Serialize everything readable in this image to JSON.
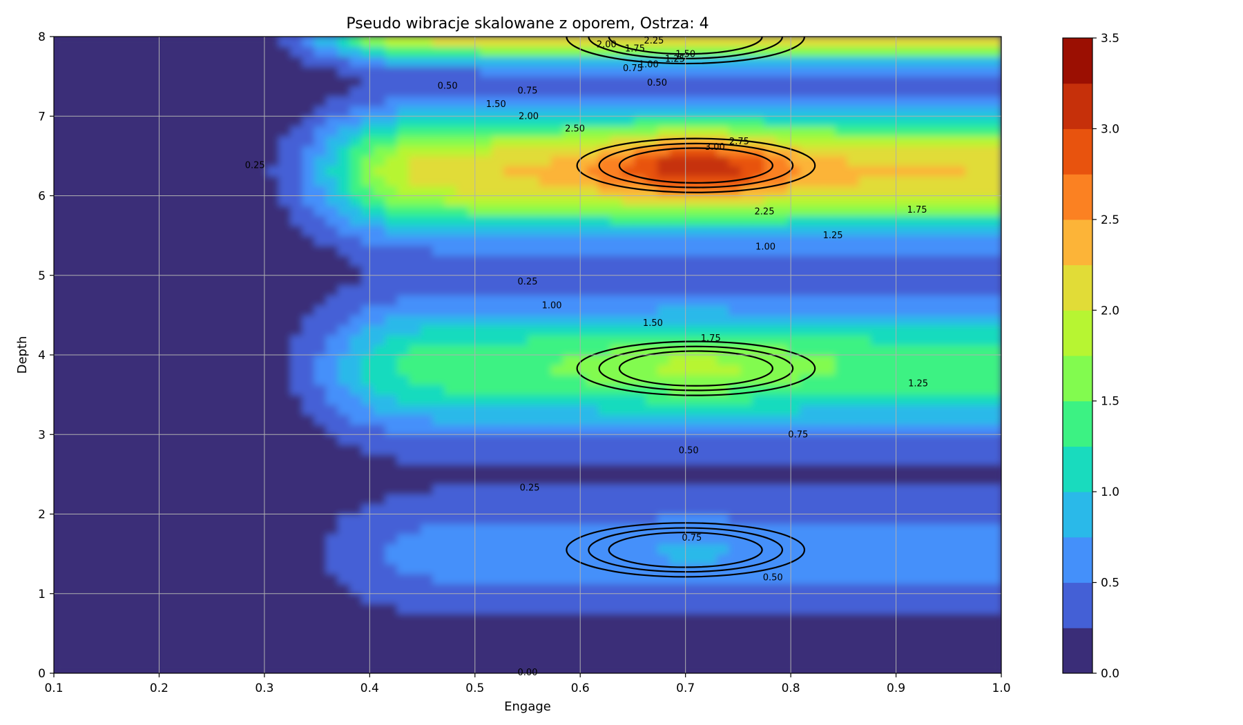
{
  "chart_data": {
    "type": "contourf",
    "title": "Pseudo wibracje skalowane z oporem, Ostrza: 4",
    "xlabel": "Engage",
    "ylabel": "Depth",
    "xlim": [
      0.1,
      1.0
    ],
    "ylim": [
      0,
      8
    ],
    "x_ticks": [
      "0.1",
      "0.2",
      "0.3",
      "0.4",
      "0.5",
      "0.6",
      "0.7",
      "0.8",
      "0.9",
      "1.0"
    ],
    "y_ticks": [
      "0",
      "1",
      "2",
      "3",
      "4",
      "5",
      "6",
      "7",
      "8"
    ],
    "grid": true,
    "colorbar": {
      "ticks": [
        "0.0",
        "0.5",
        "1.0",
        "1.5",
        "2.0",
        "2.5",
        "3.0",
        "3.5"
      ],
      "range": [
        0,
        3.5
      ],
      "level_step": 0.25,
      "colors": [
        "#3a2d78",
        "#4460d6",
        "#4490fa",
        "#2ab9e9",
        "#19dbbe",
        "#3cf283",
        "#82fb4f",
        "#b7f532",
        "#e1dc37",
        "#fcb438",
        "#fb8122",
        "#e8530e",
        "#c6300a",
        "#9b0f02"
      ]
    },
    "peaks": [
      {
        "x": 0.71,
        "y": 6.38,
        "value": 3.02
      },
      {
        "x": 0.71,
        "y": 3.83,
        "value": 1.77
      },
      {
        "x": 0.7,
        "y": 1.55,
        "value": 0.78
      },
      {
        "x": 0.7,
        "y": 8.0,
        "value": 2.3
      }
    ],
    "contour_labels": [
      {
        "text": "2.00",
        "x": 0.625,
        "y": 7.9
      },
      {
        "text": "2.25",
        "x": 0.67,
        "y": 7.95
      },
      {
        "text": "1.75",
        "x": 0.652,
        "y": 7.85
      },
      {
        "text": "1.50",
        "x": 0.7,
        "y": 7.78
      },
      {
        "text": "1.25",
        "x": 0.69,
        "y": 7.72
      },
      {
        "text": "1.00",
        "x": 0.665,
        "y": 7.65
      },
      {
        "text": "0.75",
        "x": 0.65,
        "y": 7.6
      },
      {
        "text": "0.50",
        "x": 0.673,
        "y": 7.42
      },
      {
        "text": "0.50",
        "x": 0.474,
        "y": 7.38
      },
      {
        "text": "0.75",
        "x": 0.55,
        "y": 7.32
      },
      {
        "text": "1.50",
        "x": 0.52,
        "y": 7.15
      },
      {
        "text": "2.00",
        "x": 0.551,
        "y": 7.0
      },
      {
        "text": "2.50",
        "x": 0.595,
        "y": 6.84
      },
      {
        "text": "2.75",
        "x": 0.751,
        "y": 6.68
      },
      {
        "text": "3.00",
        "x": 0.728,
        "y": 6.61
      },
      {
        "text": "0.25",
        "x": 0.291,
        "y": 6.38
      },
      {
        "text": "2.25",
        "x": 0.775,
        "y": 5.8
      },
      {
        "text": "1.75",
        "x": 0.92,
        "y": 5.82
      },
      {
        "text": "1.25",
        "x": 0.84,
        "y": 5.5
      },
      {
        "text": "1.00",
        "x": 0.776,
        "y": 5.36
      },
      {
        "text": "0.25",
        "x": 0.55,
        "y": 4.92
      },
      {
        "text": "1.00",
        "x": 0.573,
        "y": 4.62
      },
      {
        "text": "1.50",
        "x": 0.669,
        "y": 4.4
      },
      {
        "text": "1.75",
        "x": 0.724,
        "y": 4.21
      },
      {
        "text": "1.25",
        "x": 0.921,
        "y": 3.64
      },
      {
        "text": "0.75",
        "x": 0.807,
        "y": 3.0
      },
      {
        "text": "0.50",
        "x": 0.703,
        "y": 2.8
      },
      {
        "text": "0.25",
        "x": 0.552,
        "y": 2.33
      },
      {
        "text": "0.75",
        "x": 0.706,
        "y": 1.7
      },
      {
        "text": "0.50",
        "x": 0.783,
        "y": 1.2
      },
      {
        "text": "0.00",
        "x": 0.55,
        "y": 0.01
      }
    ]
  }
}
